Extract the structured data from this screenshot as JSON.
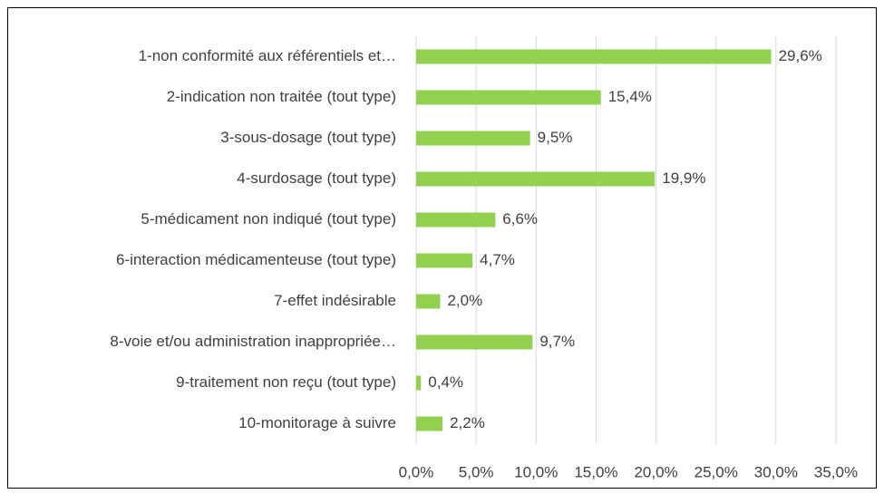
{
  "chart_data": {
    "type": "hbar",
    "categories": [
      "1-non conformité aux référentiels et…",
      "2-indication non traitée (tout type)",
      "3-sous-dosage (tout type)",
      "4-surdosage (tout type)",
      "5-médicament non indiqué (tout type)",
      "6-interaction médicamenteuse (tout type)",
      "7-effet indésirable",
      "8-voie et/ou administration inappropriée…",
      "9-traitement non reçu (tout type)",
      "10-monitorage à suivre"
    ],
    "values": [
      29.6,
      15.4,
      9.5,
      19.9,
      6.6,
      4.7,
      2.0,
      9.7,
      0.4,
      2.2
    ],
    "value_labels": [
      "29,6%",
      "15,4%",
      "9,5%",
      "19,9%",
      "6,6%",
      "4,7%",
      "2,0%",
      "9,7%",
      "0,4%",
      "2,2%"
    ],
    "color": "#92d050",
    "xlim": [
      0,
      35
    ],
    "xticks": [
      {
        "value": 0,
        "label": "0,0%"
      },
      {
        "value": 5,
        "label": "5,0%"
      },
      {
        "value": 10,
        "label": "10,0%"
      },
      {
        "value": 15,
        "label": "15,0%"
      },
      {
        "value": 20,
        "label": "20,0%"
      },
      {
        "value": 25,
        "label": "25,0%"
      },
      {
        "value": 30,
        "label": "30,0%"
      },
      {
        "value": 35,
        "label": "35,0%"
      }
    ],
    "grid": true
  }
}
